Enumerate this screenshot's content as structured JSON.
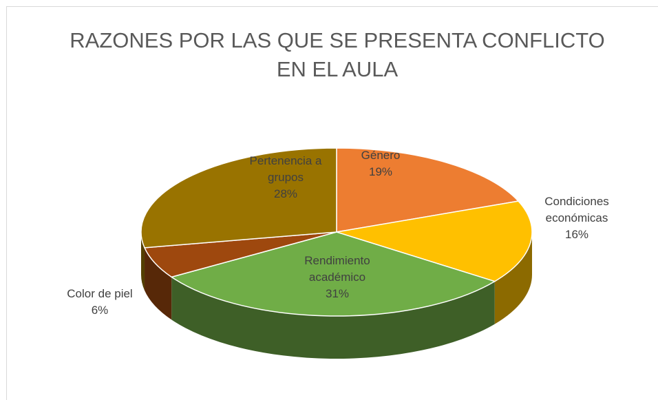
{
  "chart_data": {
    "type": "pie",
    "title": "RAZONES POR LAS QUE SE PRESENTA CONFLICTO EN EL AULA",
    "categories": [
      "Género",
      "Condiciones económicas",
      "Rendimiento académico",
      "Color de piel",
      "Pertenencia a grupos"
    ],
    "values": [
      19,
      16,
      31,
      6,
      28
    ],
    "value_labels": [
      "19%",
      "16%",
      "31%",
      "6%",
      "28%"
    ],
    "colors": [
      "#ed7d31",
      "#ffc000",
      "#70ad47",
      "#9e480e",
      "#997300"
    ]
  }
}
